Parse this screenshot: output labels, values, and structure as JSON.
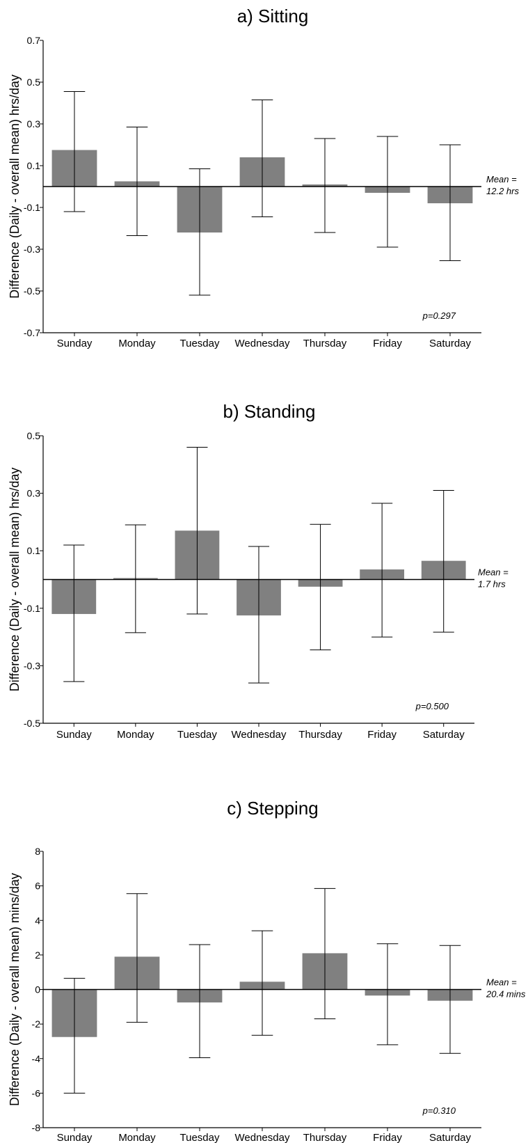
{
  "chart_data": [
    {
      "type": "bar",
      "title": "a) Sitting",
      "ylabel": "Difference  (Daily - overall mean) hrs/day",
      "categories": [
        "Sunday",
        "Monday",
        "Tuesday",
        "Wednesday",
        "Thursday",
        "Friday",
        "Saturday"
      ],
      "values": [
        0.175,
        0.025,
        -0.22,
        0.14,
        0.01,
        -0.03,
        -0.08
      ],
      "error_low": [
        -0.12,
        -0.235,
        -0.52,
        -0.145,
        -0.22,
        -0.29,
        -0.355
      ],
      "error_high": [
        0.455,
        0.285,
        0.085,
        0.415,
        0.23,
        0.24,
        0.2
      ],
      "ylim": [
        -0.7,
        0.7
      ],
      "yticks": [
        "0.7",
        "0.5",
        "0.3",
        "0.1",
        "-0.1",
        "-0.3",
        "-0.5",
        "-0.7"
      ],
      "ytick_values": [
        0.7,
        0.5,
        0.3,
        0.1,
        -0.1,
        -0.3,
        -0.5,
        -0.7
      ],
      "mean_label_1": "Mean =",
      "mean_label_2": "12.2 hrs",
      "p_value": "p=0.297",
      "bar_color": "#808080"
    },
    {
      "type": "bar",
      "title": "b) Standing",
      "ylabel": "Difference  (Daily - overall mean) hrs/day",
      "categories": [
        "Sunday",
        "Monday",
        "Tuesday",
        "Wednesday",
        "Thursday",
        "Friday",
        "Saturday"
      ],
      "values": [
        -0.12,
        0.005,
        0.17,
        -0.125,
        -0.025,
        0.035,
        0.065
      ],
      "error_low": [
        -0.355,
        -0.185,
        -0.12,
        -0.36,
        -0.245,
        -0.2,
        -0.183
      ],
      "error_high": [
        0.12,
        0.19,
        0.46,
        0.115,
        0.192,
        0.265,
        0.31
      ],
      "ylim": [
        -0.5,
        0.5
      ],
      "yticks": [
        "0.5",
        "0.3",
        "0.1",
        "-0.1",
        "-0.3",
        "-0.5"
      ],
      "ytick_values": [
        0.5,
        0.3,
        0.1,
        -0.1,
        -0.3,
        -0.5
      ],
      "mean_label_1": "Mean =",
      "mean_label_2": "1.7 hrs",
      "p_value": "p=0.500",
      "bar_color": "#808080"
    },
    {
      "type": "bar",
      "title": "c) Stepping",
      "ylabel": "Difference  (Daily - overall mean) mins/day",
      "categories": [
        "Sunday",
        "Monday",
        "Tuesday",
        "Wednesday",
        "Thursday",
        "Friday",
        "Saturday"
      ],
      "values": [
        -2.75,
        1.9,
        -0.75,
        0.45,
        2.1,
        -0.35,
        -0.65
      ],
      "error_low": [
        -6.0,
        -1.9,
        -3.95,
        -2.65,
        -1.7,
        -3.2,
        -3.7
      ],
      "error_high": [
        0.65,
        5.55,
        2.6,
        3.4,
        5.85,
        2.65,
        2.55
      ],
      "ylim": [
        -8,
        8
      ],
      "yticks": [
        "8",
        "6",
        "4",
        "2",
        "0",
        "-2",
        "-4",
        "-6",
        "-8"
      ],
      "ytick_values": [
        8,
        6,
        4,
        2,
        0,
        -2,
        -4,
        -6,
        -8
      ],
      "mean_label_1": "Mean =",
      "mean_label_2": "20.4 mins",
      "p_value": "p=0.310",
      "bar_color": "#808080"
    }
  ]
}
